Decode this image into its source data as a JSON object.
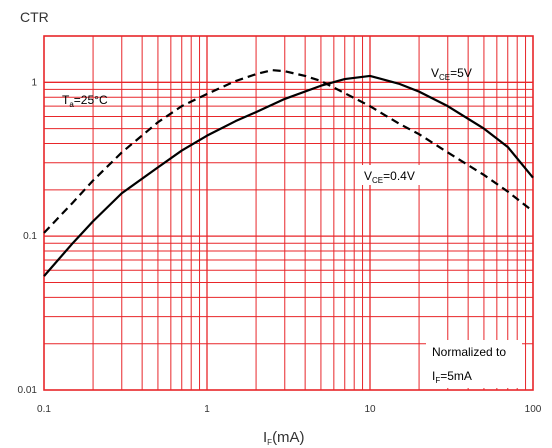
{
  "chart_data": {
    "type": "line",
    "ylabel": "CTR",
    "xlabel": {
      "main": "I",
      "sub": "F",
      "rest": "(mA)"
    },
    "x_scale": "log",
    "y_scale": "log",
    "xlim": [
      0.1,
      100
    ],
    "ylim": [
      0.01,
      2
    ],
    "x_ticks": [
      {
        "value": 0.1,
        "label": "0.1"
      },
      {
        "value": 1,
        "label": "1"
      },
      {
        "value": 10,
        "label": "10"
      },
      {
        "value": 100,
        "label": "100"
      }
    ],
    "y_ticks": [
      {
        "value": 0.01,
        "label": "0.01"
      },
      {
        "value": 0.1,
        "label": "0.1"
      },
      {
        "value": 1,
        "label": "1"
      }
    ],
    "grid": true,
    "grid_color": "#e8262a",
    "axis_color": "#e8262a",
    "series": [
      {
        "style": "dashed",
        "color": "#000000",
        "x": [
          0.1,
          0.15,
          0.2,
          0.3,
          0.5,
          0.7,
          1,
          1.5,
          2,
          2.5,
          3,
          4,
          5,
          7,
          10,
          15,
          20,
          30,
          50,
          70,
          100
        ],
        "y": [
          0.105,
          0.165,
          0.23,
          0.35,
          0.55,
          0.7,
          0.84,
          1.02,
          1.13,
          1.2,
          1.18,
          1.1,
          1.02,
          0.85,
          0.7,
          0.54,
          0.46,
          0.35,
          0.25,
          0.195,
          0.145
        ]
      },
      {
        "style": "solid",
        "color": "#000000",
        "x": [
          0.1,
          0.15,
          0.2,
          0.3,
          0.5,
          0.7,
          1,
          1.5,
          2,
          3,
          5,
          7,
          10,
          15,
          20,
          30,
          50,
          70,
          100
        ],
        "y": [
          0.055,
          0.09,
          0.125,
          0.19,
          0.28,
          0.36,
          0.45,
          0.56,
          0.64,
          0.78,
          0.95,
          1.05,
          1.1,
          0.98,
          0.87,
          0.7,
          0.5,
          0.38,
          0.24
        ]
      }
    ],
    "annotations": {
      "ta": {
        "main": "T",
        "sub": "a",
        "rest": "=25°C"
      },
      "vce5": {
        "main": "V",
        "sub": "CE",
        "rest": "=5V"
      },
      "vce04": {
        "main": "V",
        "sub": "CE",
        "rest": "=0.4V"
      },
      "norm_line1": "Normalized to",
      "norm_line2": {
        "main": "I",
        "sub": "F",
        "rest": "=5mA"
      }
    }
  }
}
